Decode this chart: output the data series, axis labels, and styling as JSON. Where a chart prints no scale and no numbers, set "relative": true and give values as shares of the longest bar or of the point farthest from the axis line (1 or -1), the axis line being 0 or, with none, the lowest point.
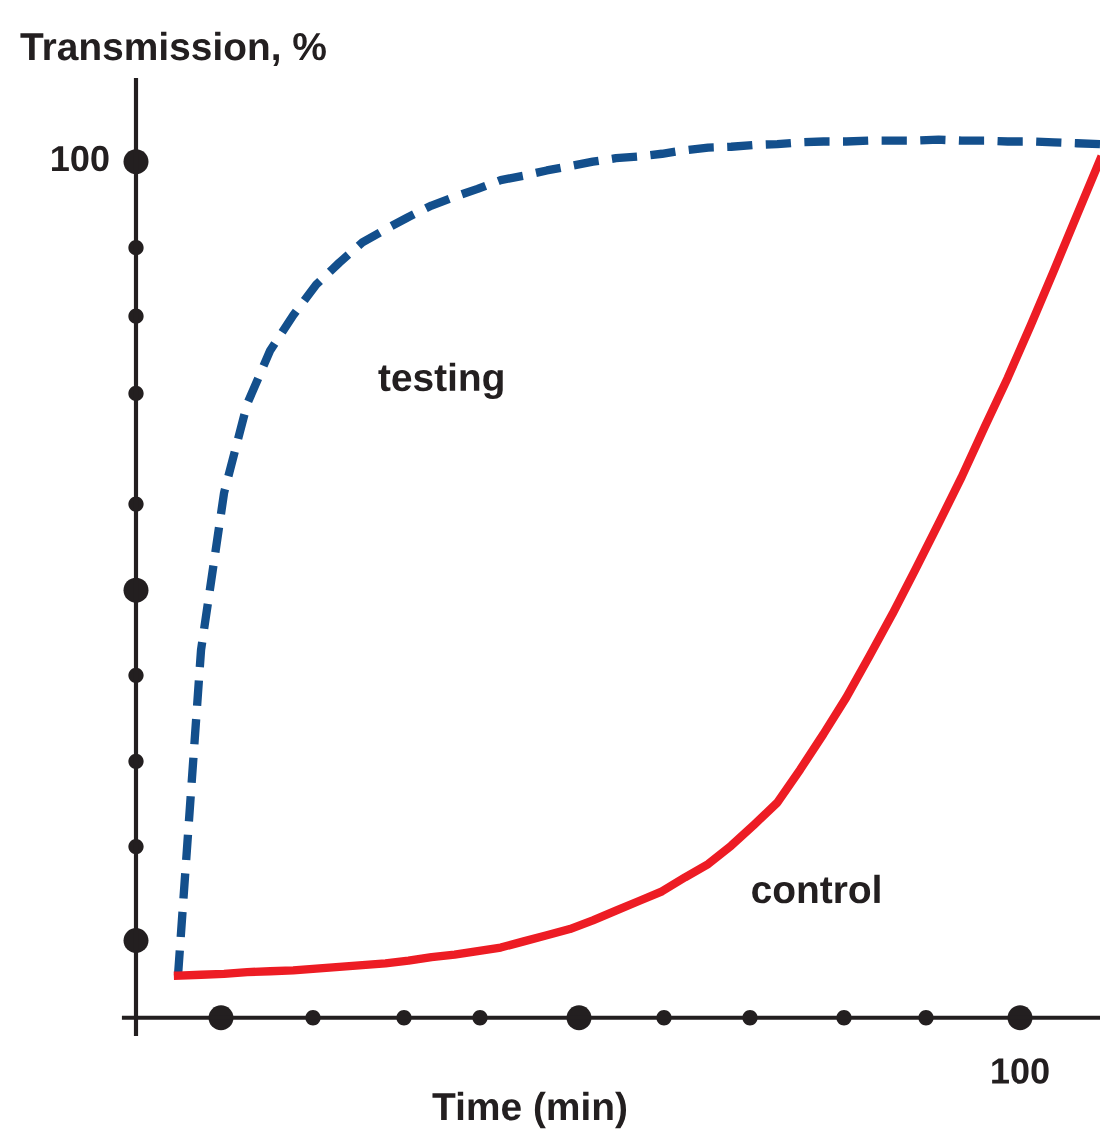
{
  "chart_data": {
    "type": "line",
    "ylabel": "Transmission, %",
    "xlabel": "Time (min)",
    "relative": true,
    "annotations": [
      "100",
      "100"
    ],
    "grid": false,
    "legend": false,
    "marker": "none",
    "categories": [
      null,
      null,
      null,
      null,
      null,
      null,
      null,
      null,
      null,
      null,
      null,
      null,
      null,
      null,
      null,
      null,
      null,
      null,
      null,
      null,
      null,
      null,
      null,
      null,
      null,
      null,
      null,
      null,
      null,
      null,
      null,
      null,
      null,
      null,
      null,
      null,
      null,
      null,
      null,
      null,
      null
    ],
    "series": [
      {
        "name": "testing",
        "color": "#134f8c",
        "line_style": "dashed",
        "values": [
          0.048,
          0.419,
          0.598,
          0.699,
          0.76,
          0.8,
          0.835,
          0.86,
          0.883,
          0.898,
          0.912,
          0.925,
          0.935,
          0.944,
          0.954,
          0.959,
          0.965,
          0.97,
          0.975,
          0.979,
          0.981,
          0.984,
          0.988,
          0.991,
          0.992,
          0.994,
          0.995,
          0.997,
          0.998,
          0.998,
          0.999,
          0.999,
          0.999,
          1,
          0.999,
          0.999,
          0.998,
          0.998,
          0.997,
          0.996,
          0.995
        ]
      },
      {
        "name": "control",
        "color": "#ed1c24",
        "line_style": "solid",
        "values": [
          0.048,
          0.049,
          0.05,
          0.052,
          0.053,
          0.054,
          0.056,
          0.058,
          0.06,
          0.062,
          0.065,
          0.069,
          0.072,
          0.076,
          0.08,
          0.087,
          0.094,
          0.101,
          0.111,
          0.122,
          0.133,
          0.144,
          0.16,
          0.175,
          0.196,
          0.22,
          0.245,
          0.283,
          0.323,
          0.365,
          0.412,
          0.46,
          0.511,
          0.563,
          0.616,
          0.673,
          0.729,
          0.789,
          0.851,
          0.914,
          0.977
        ]
      }
    ]
  }
}
